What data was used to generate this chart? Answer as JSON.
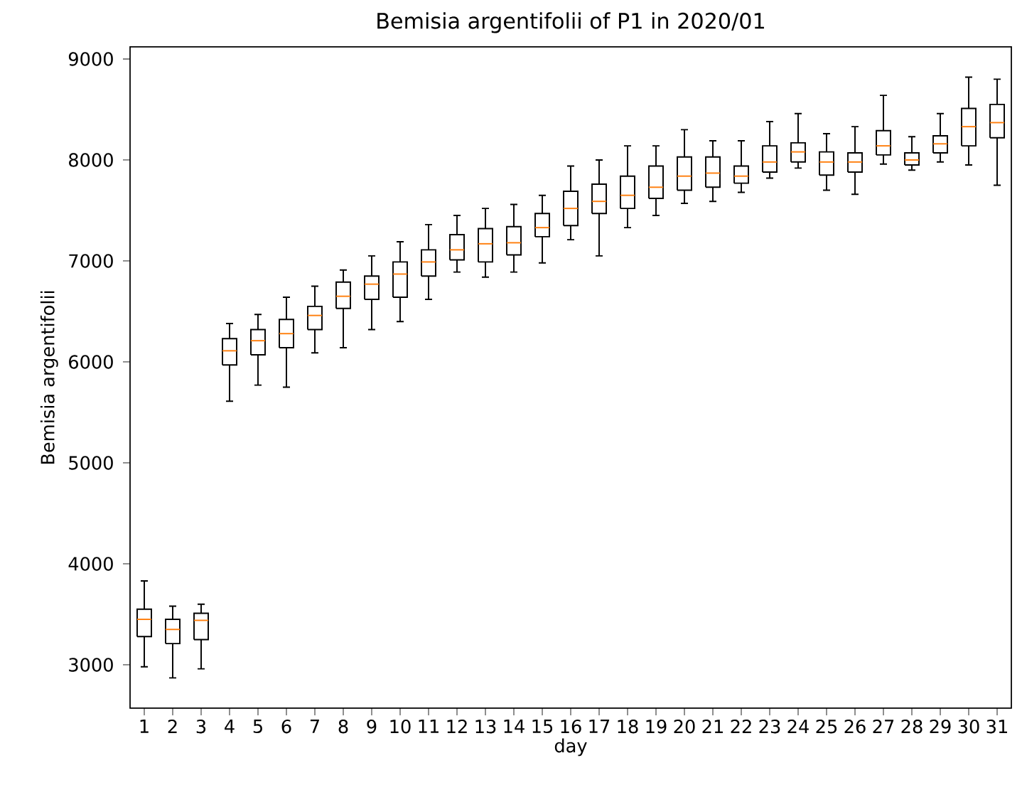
{
  "chart_data": {
    "type": "box",
    "title": "Bemisia argentifolii of P1 in 2020/01",
    "xlabel": "day",
    "ylabel": "Bemisia argentifolii",
    "categories": [
      "1",
      "2",
      "3",
      "4",
      "5",
      "6",
      "7",
      "8",
      "9",
      "10",
      "11",
      "12",
      "13",
      "14",
      "15",
      "16",
      "17",
      "18",
      "19",
      "20",
      "21",
      "22",
      "23",
      "24",
      "25",
      "26",
      "27",
      "28",
      "29",
      "30",
      "31"
    ],
    "ylim": [
      2570,
      9120
    ],
    "yticks": [
      3000,
      4000,
      5000,
      6000,
      7000,
      8000,
      9000
    ],
    "grid": false,
    "color": "#000000",
    "boxes": [
      {
        "low": 2980,
        "q1": 3280,
        "median": 3450,
        "q3": 3550,
        "high": 3830
      },
      {
        "low": 2870,
        "q1": 3210,
        "median": 3350,
        "q3": 3450,
        "high": 3580
      },
      {
        "low": 2960,
        "q1": 3250,
        "median": 3440,
        "q3": 3510,
        "high": 3600
      },
      {
        "low": 5610,
        "q1": 5970,
        "median": 6110,
        "q3": 6230,
        "high": 6380
      },
      {
        "low": 5770,
        "q1": 6070,
        "median": 6210,
        "q3": 6320,
        "high": 6470
      },
      {
        "low": 5750,
        "q1": 6140,
        "median": 6280,
        "q3": 6420,
        "high": 6640
      },
      {
        "low": 6090,
        "q1": 6320,
        "median": 6460,
        "q3": 6550,
        "high": 6750
      },
      {
        "low": 6140,
        "q1": 6530,
        "median": 6650,
        "q3": 6790,
        "high": 6910
      },
      {
        "low": 6320,
        "q1": 6620,
        "median": 6770,
        "q3": 6850,
        "high": 7050
      },
      {
        "low": 6400,
        "q1": 6640,
        "median": 6870,
        "q3": 6990,
        "high": 7190
      },
      {
        "low": 6620,
        "q1": 6850,
        "median": 6990,
        "q3": 7110,
        "high": 7360
      },
      {
        "low": 6890,
        "q1": 7010,
        "median": 7110,
        "q3": 7260,
        "high": 7450
      },
      {
        "low": 6840,
        "q1": 6990,
        "median": 7170,
        "q3": 7320,
        "high": 7520
      },
      {
        "low": 6890,
        "q1": 7060,
        "median": 7180,
        "q3": 7340,
        "high": 7560
      },
      {
        "low": 6980,
        "q1": 7240,
        "median": 7330,
        "q3": 7470,
        "high": 7650
      },
      {
        "low": 7210,
        "q1": 7350,
        "median": 7520,
        "q3": 7690,
        "high": 7940
      },
      {
        "low": 7050,
        "q1": 7470,
        "median": 7590,
        "q3": 7760,
        "high": 8000
      },
      {
        "low": 7330,
        "q1": 7520,
        "median": 7650,
        "q3": 7840,
        "high": 8140
      },
      {
        "low": 7450,
        "q1": 7620,
        "median": 7730,
        "q3": 7940,
        "high": 8140
      },
      {
        "low": 7570,
        "q1": 7700,
        "median": 7840,
        "q3": 8030,
        "high": 8300
      },
      {
        "low": 7590,
        "q1": 7730,
        "median": 7870,
        "q3": 8030,
        "high": 8190
      },
      {
        "low": 7680,
        "q1": 7770,
        "median": 7840,
        "q3": 7940,
        "high": 8190
      },
      {
        "low": 7820,
        "q1": 7880,
        "median": 7980,
        "q3": 8140,
        "high": 8380
      },
      {
        "low": 7920,
        "q1": 7980,
        "median": 8080,
        "q3": 8170,
        "high": 8460
      },
      {
        "low": 7700,
        "q1": 7850,
        "median": 7980,
        "q3": 8080,
        "high": 8260
      },
      {
        "low": 7660,
        "q1": 7880,
        "median": 7980,
        "q3": 8070,
        "high": 8330
      },
      {
        "low": 7960,
        "q1": 8050,
        "median": 8140,
        "q3": 8290,
        "high": 8640
      },
      {
        "low": 7900,
        "q1": 7950,
        "median": 8000,
        "q3": 8070,
        "high": 8230
      },
      {
        "low": 7980,
        "q1": 8070,
        "median": 8160,
        "q3": 8240,
        "high": 8460
      },
      {
        "low": 7950,
        "q1": 8140,
        "median": 8330,
        "q3": 8510,
        "high": 8820
      },
      {
        "low": 7750,
        "q1": 8220,
        "median": 8370,
        "q3": 8550,
        "high": 8800
      }
    ]
  }
}
